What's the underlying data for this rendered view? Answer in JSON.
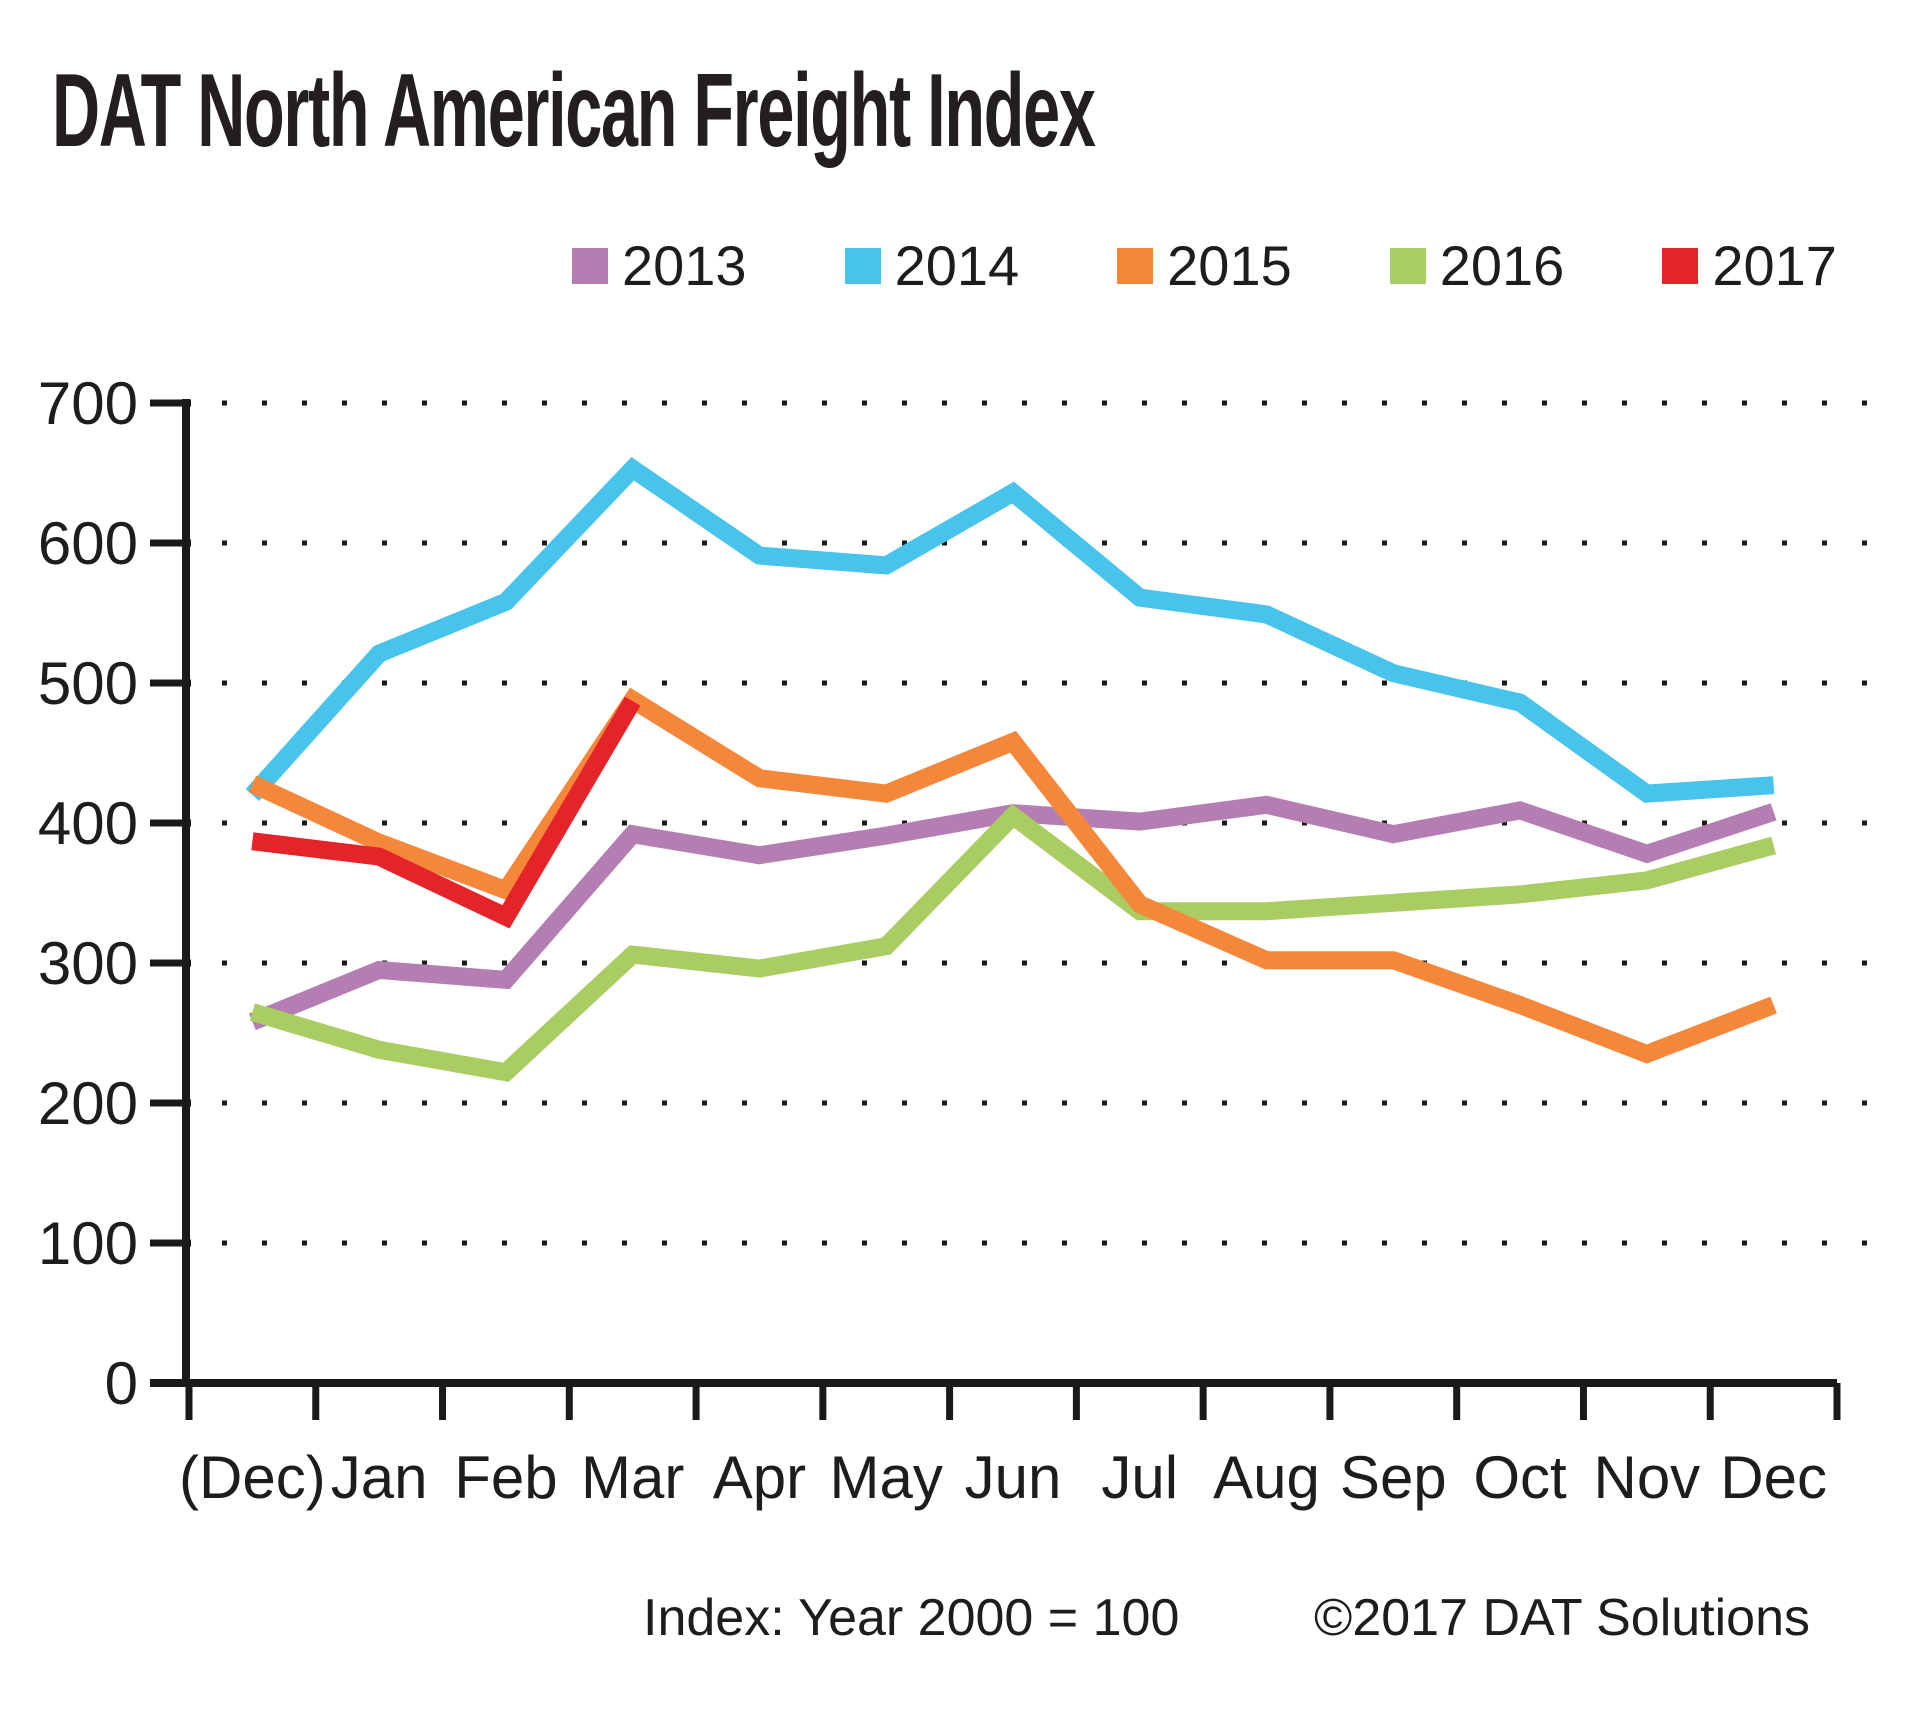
{
  "title": "DAT North American Freight Index",
  "footer": {
    "note": "Index: Year 2000 = 100",
    "copyright": "©2017 DAT Solutions"
  },
  "chart_data": {
    "type": "line",
    "title": "DAT North American Freight Index",
    "xlabel": "",
    "ylabel": "",
    "ylim": [
      0,
      700
    ],
    "y_ticks": [
      0,
      100,
      200,
      300,
      400,
      500,
      600,
      700
    ],
    "grid": "dotted-horizontal",
    "legend_position": "top-center",
    "categories": [
      "(Dec)",
      "Jan",
      "Feb",
      "Mar",
      "Apr",
      "May",
      "Jun",
      "Jul",
      "Aug",
      "Sep",
      "Oct",
      "Nov",
      "Dec"
    ],
    "series": [
      {
        "name": "2013",
        "color": "#b57eb2",
        "values": [
          258,
          295,
          288,
          392,
          377,
          391,
          407,
          401,
          413,
          392,
          409,
          378,
          408
        ]
      },
      {
        "name": "2014",
        "color": "#47c3ec",
        "values": [
          420,
          521,
          558,
          653,
          591,
          584,
          636,
          561,
          549,
          507,
          486,
          421,
          427
        ]
      },
      {
        "name": "2015",
        "color": "#f5873b",
        "values": [
          428,
          386,
          352,
          488,
          432,
          421,
          458,
          342,
          302,
          302,
          270,
          235,
          270
        ]
      },
      {
        "name": "2016",
        "color": "#a9cd62",
        "values": [
          265,
          238,
          222,
          306,
          296,
          312,
          405,
          337,
          337,
          343,
          349,
          359,
          384
        ]
      },
      {
        "name": "2017",
        "color": "#e42428",
        "values": [
          387,
          376,
          333,
          487,
          null,
          null,
          null,
          null,
          null,
          null,
          null,
          null,
          null
        ]
      }
    ],
    "draw_order": [
      "2013",
      "2014",
      "2016",
      "2015",
      "2017"
    ],
    "axis_color": "#1a1a1a"
  }
}
